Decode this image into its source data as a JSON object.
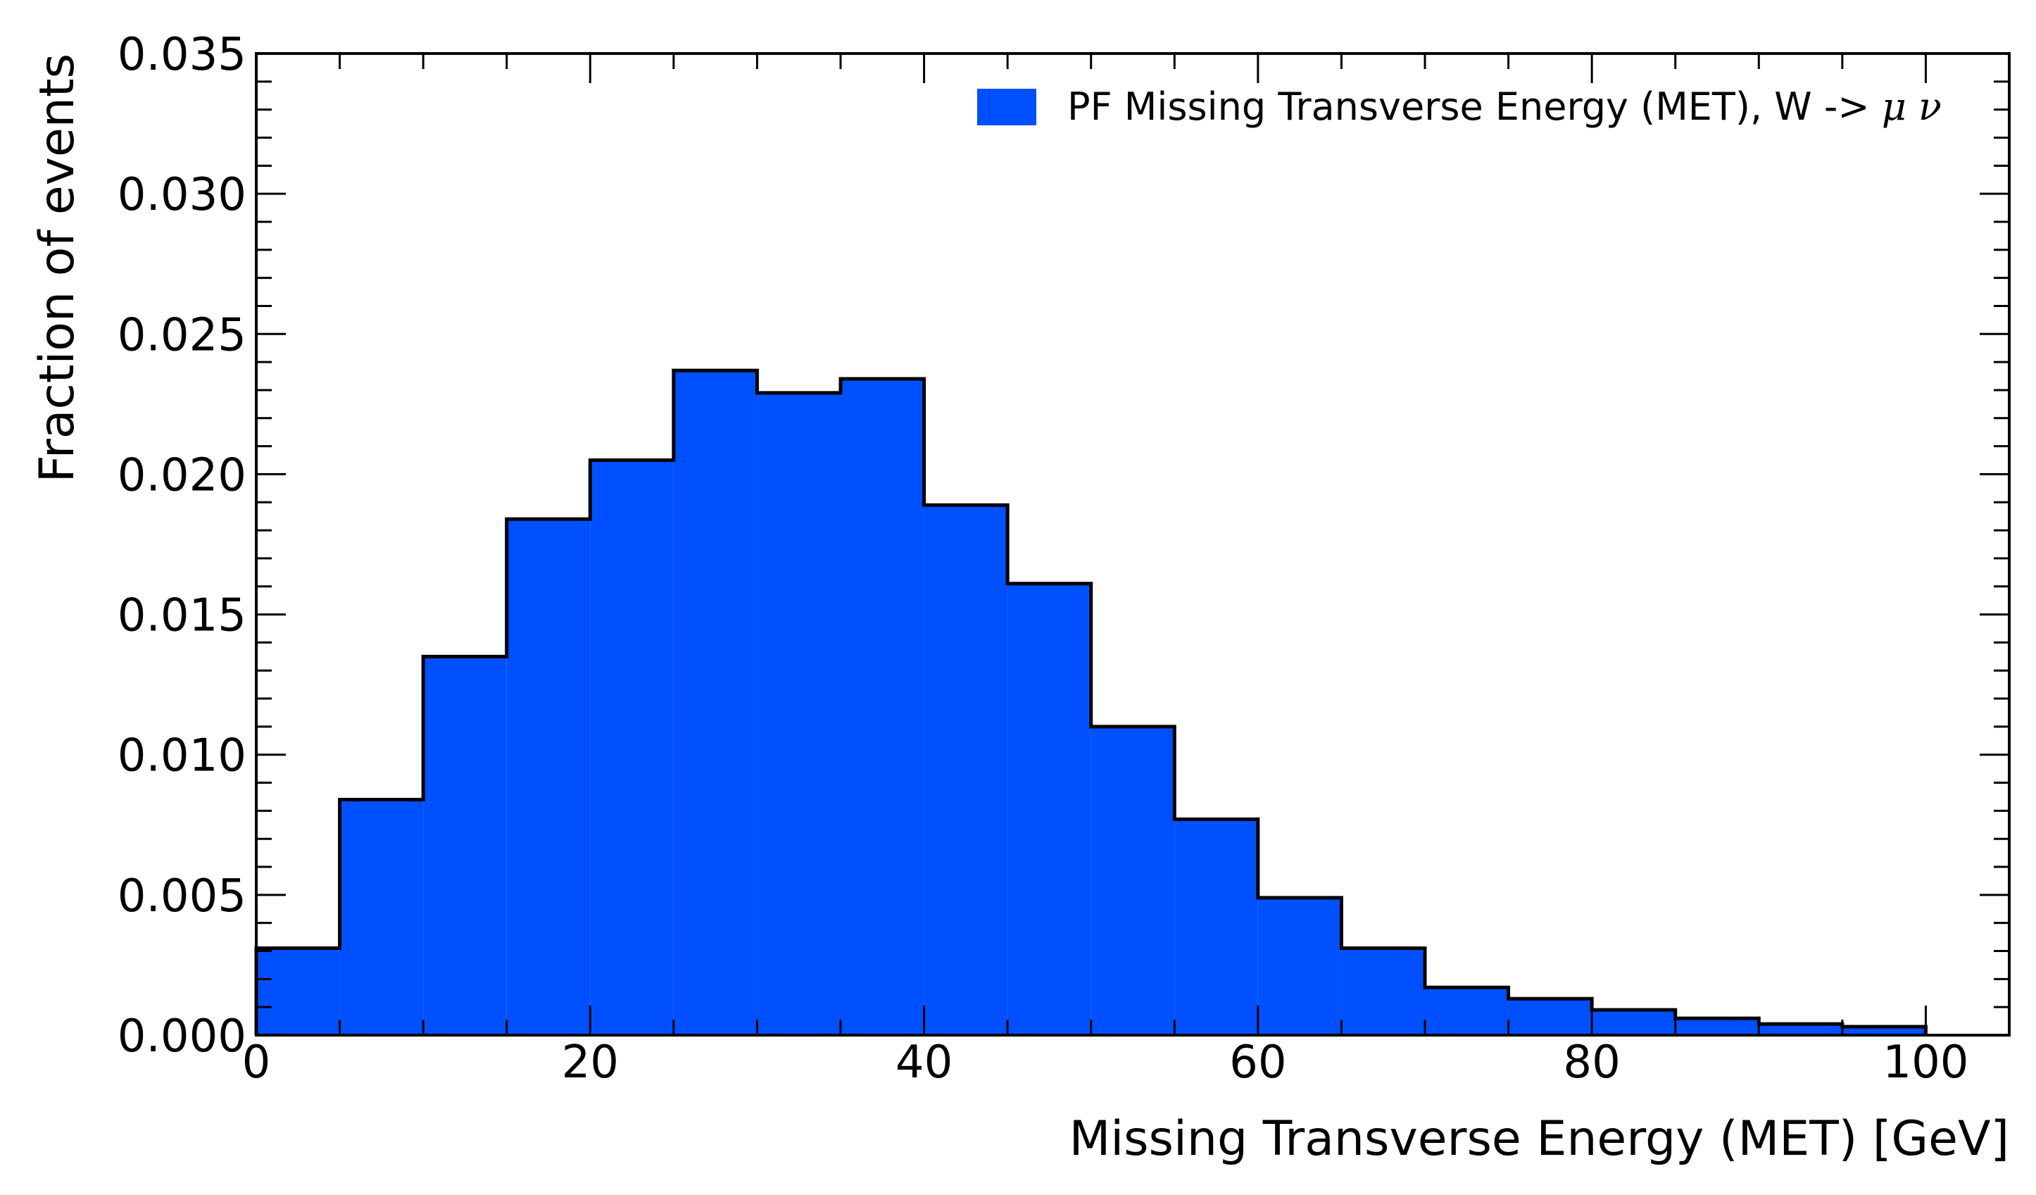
{
  "chart_data": {
    "type": "bar",
    "histogram": true,
    "bin_edges": [
      0,
      5,
      10,
      15,
      20,
      25,
      30,
      35,
      40,
      45,
      50,
      55,
      60,
      65,
      70,
      75,
      80,
      85,
      90,
      95,
      100
    ],
    "values": [
      0.0031,
      0.0084,
      0.0135,
      0.0184,
      0.0205,
      0.0237,
      0.0229,
      0.0234,
      0.0189,
      0.0161,
      0.011,
      0.0077,
      0.0049,
      0.0031,
      0.0017,
      0.0013,
      0.0009,
      0.0006,
      0.0004,
      0.0003
    ],
    "xlabel": "Missing Transverse Energy (MET) [GeV]",
    "ylabel": "Fraction of events",
    "xlim": [
      0,
      105
    ],
    "ylim": [
      0,
      0.035
    ],
    "x_ticks": [
      "0",
      "20",
      "40",
      "60",
      "80",
      "100"
    ],
    "y_ticks": [
      "0.000",
      "0.005",
      "0.010",
      "0.015",
      "0.020",
      "0.025",
      "0.030",
      "0.035"
    ],
    "grid": false,
    "legend_position": "top-right",
    "series": [
      {
        "name_text": "PF Missing Transverse Energy (MET), W ->",
        "name_symbols": "μ ν",
        "color": "#0050ff"
      }
    ]
  }
}
